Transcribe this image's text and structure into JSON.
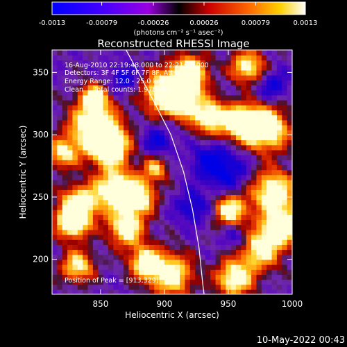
{
  "chart_data": {
    "type": "heatmap",
    "title": "Reconstructed RHESSI Image",
    "xlabel": "Heliocentric X (arcsec)",
    "ylabel": "Heliocentric Y (arcsec)",
    "xlim": [
      812,
      1000
    ],
    "ylim": [
      172,
      368
    ],
    "x_ticks": [
      850,
      900,
      950,
      1000
    ],
    "y_ticks": [
      200,
      250,
      300,
      350
    ],
    "colorbar": {
      "min": -0.0013,
      "max": 0.0013,
      "tick_values": [
        -0.0013,
        -0.00079,
        -0.00026,
        0.00026,
        0.00079,
        0.0013
      ],
      "tick_labels": [
        "-0.0013",
        "-0.00079",
        "-0.00026",
        "0.00026",
        "0.00079",
        "0.0013"
      ],
      "unit_label": "(photons cm⁻² s⁻¹ asec⁻²)"
    },
    "annotations": {
      "time": "16-Aug-2010 22:19:48.000 to 22:21:28.000",
      "detectors": "Detectors: 3F 4F 5F 6F 7F 8F, Att 0",
      "energy": "Energy Range: 12.0 - 25.0 keV",
      "clean": "Clean     Total counts: 1.97E+03",
      "peak": "Position of Peak = [913,329]"
    },
    "peak": [
      913,
      329
    ],
    "limb_curve": [
      [
        870,
        368
      ],
      [
        890,
        330
      ],
      [
        905,
        300
      ],
      [
        915,
        270
      ],
      [
        922,
        240
      ],
      [
        927,
        210
      ],
      [
        930,
        180
      ],
      [
        931,
        172
      ]
    ],
    "blobs": [
      {
        "x": 845,
        "y": 305,
        "intensity": 1.0,
        "r": 14
      },
      {
        "x": 858,
        "y": 290,
        "intensity": 0.9,
        "r": 10
      },
      {
        "x": 833,
        "y": 245,
        "intensity": 0.85,
        "r": 10
      },
      {
        "x": 828,
        "y": 230,
        "intensity": 1.0,
        "r": 9
      },
      {
        "x": 862,
        "y": 256,
        "intensity": 0.95,
        "r": 12
      },
      {
        "x": 880,
        "y": 250,
        "intensity": 0.8,
        "r": 9
      },
      {
        "x": 870,
        "y": 225,
        "intensity": 0.85,
        "r": 10
      },
      {
        "x": 900,
        "y": 335,
        "intensity": 0.9,
        "r": 12
      },
      {
        "x": 920,
        "y": 350,
        "intensity": 0.9,
        "r": 10
      },
      {
        "x": 913,
        "y": 329,
        "intensity": 1.0,
        "r": 9
      },
      {
        "x": 935,
        "y": 315,
        "intensity": 0.85,
        "r": 10
      },
      {
        "x": 960,
        "y": 310,
        "intensity": 0.95,
        "r": 10
      },
      {
        "x": 980,
        "y": 305,
        "intensity": 1.0,
        "r": 12
      },
      {
        "x": 965,
        "y": 355,
        "intensity": 0.8,
        "r": 9
      },
      {
        "x": 952,
        "y": 240,
        "intensity": 0.85,
        "r": 9
      },
      {
        "x": 985,
        "y": 255,
        "intensity": 0.9,
        "r": 12
      },
      {
        "x": 993,
        "y": 228,
        "intensity": 0.95,
        "r": 10
      },
      {
        "x": 975,
        "y": 210,
        "intensity": 0.85,
        "r": 12
      },
      {
        "x": 955,
        "y": 185,
        "intensity": 0.9,
        "r": 10
      },
      {
        "x": 905,
        "y": 188,
        "intensity": 0.85,
        "r": 12
      },
      {
        "x": 885,
        "y": 198,
        "intensity": 0.8,
        "r": 9
      },
      {
        "x": 832,
        "y": 195,
        "intensity": 0.75,
        "r": 9
      },
      {
        "x": 820,
        "y": 285,
        "intensity": 0.7,
        "r": 8
      },
      {
        "x": 845,
        "y": 330,
        "intensity": 0.75,
        "r": 8
      },
      {
        "x": 893,
        "y": 273,
        "intensity": 0.6,
        "r": 7
      }
    ],
    "dips": [
      {
        "x": 950,
        "y": 270,
        "r": 12
      },
      {
        "x": 935,
        "y": 280,
        "r": 10
      },
      {
        "x": 958,
        "y": 218,
        "r": 8
      },
      {
        "x": 895,
        "y": 295,
        "r": 8
      },
      {
        "x": 922,
        "y": 242,
        "r": 9
      },
      {
        "x": 868,
        "y": 345,
        "r": 8
      },
      {
        "x": 985,
        "y": 340,
        "r": 8
      }
    ]
  },
  "footer": {
    "datetime": "10-May-2022 00:43"
  }
}
